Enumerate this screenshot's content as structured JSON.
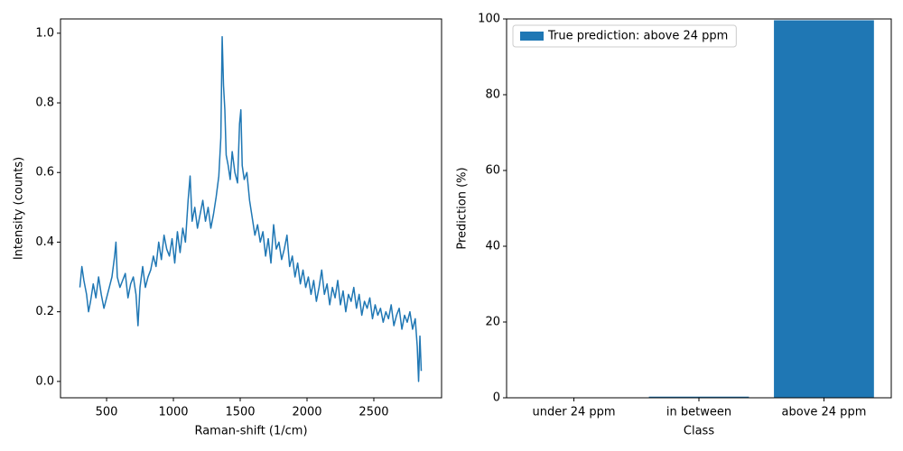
{
  "chart_data": [
    {
      "type": "line",
      "xlabel": "Raman-shift (1/cm)",
      "ylabel": "Intensity (counts)",
      "color": "#1f77b4",
      "x": [
        300,
        315,
        330,
        350,
        365,
        380,
        400,
        420,
        440,
        460,
        480,
        500,
        520,
        540,
        560,
        570,
        580,
        600,
        620,
        640,
        660,
        680,
        700,
        720,
        735,
        750,
        770,
        790,
        810,
        830,
        850,
        870,
        890,
        910,
        930,
        950,
        970,
        990,
        1010,
        1030,
        1050,
        1070,
        1090,
        1110,
        1125,
        1140,
        1160,
        1180,
        1200,
        1220,
        1240,
        1260,
        1280,
        1300,
        1320,
        1340,
        1355,
        1365,
        1375,
        1385,
        1395,
        1410,
        1425,
        1440,
        1460,
        1480,
        1495,
        1505,
        1515,
        1530,
        1550,
        1570,
        1590,
        1610,
        1630,
        1650,
        1670,
        1690,
        1710,
        1730,
        1750,
        1770,
        1790,
        1810,
        1830,
        1850,
        1870,
        1890,
        1910,
        1930,
        1950,
        1970,
        1990,
        2010,
        2030,
        2050,
        2070,
        2090,
        2110,
        2130,
        2150,
        2170,
        2190,
        2210,
        2230,
        2250,
        2270,
        2290,
        2310,
        2330,
        2350,
        2370,
        2390,
        2410,
        2430,
        2450,
        2470,
        2490,
        2510,
        2530,
        2550,
        2570,
        2590,
        2610,
        2630,
        2650,
        2670,
        2690,
        2710,
        2730,
        2750,
        2770,
        2790,
        2810,
        2825,
        2835,
        2845,
        2855
      ],
      "values": [
        0.27,
        0.33,
        0.29,
        0.25,
        0.2,
        0.23,
        0.28,
        0.24,
        0.3,
        0.25,
        0.21,
        0.24,
        0.27,
        0.3,
        0.36,
        0.4,
        0.3,
        0.27,
        0.29,
        0.31,
        0.24,
        0.28,
        0.3,
        0.25,
        0.16,
        0.27,
        0.33,
        0.27,
        0.3,
        0.32,
        0.36,
        0.33,
        0.4,
        0.35,
        0.42,
        0.38,
        0.36,
        0.41,
        0.34,
        0.43,
        0.37,
        0.44,
        0.4,
        0.52,
        0.59,
        0.46,
        0.5,
        0.44,
        0.48,
        0.52,
        0.46,
        0.5,
        0.44,
        0.48,
        0.53,
        0.59,
        0.7,
        0.99,
        0.85,
        0.78,
        0.65,
        0.62,
        0.58,
        0.66,
        0.6,
        0.57,
        0.74,
        0.78,
        0.62,
        0.58,
        0.6,
        0.52,
        0.47,
        0.42,
        0.45,
        0.4,
        0.43,
        0.36,
        0.41,
        0.34,
        0.45,
        0.38,
        0.4,
        0.35,
        0.38,
        0.42,
        0.33,
        0.36,
        0.3,
        0.34,
        0.28,
        0.32,
        0.27,
        0.3,
        0.25,
        0.29,
        0.23,
        0.27,
        0.32,
        0.25,
        0.28,
        0.22,
        0.27,
        0.24,
        0.29,
        0.22,
        0.26,
        0.2,
        0.25,
        0.23,
        0.27,
        0.21,
        0.25,
        0.19,
        0.23,
        0.21,
        0.24,
        0.18,
        0.22,
        0.19,
        0.21,
        0.17,
        0.2,
        0.18,
        0.22,
        0.16,
        0.19,
        0.21,
        0.15,
        0.19,
        0.17,
        0.2,
        0.15,
        0.18,
        0.1,
        0.0,
        0.13,
        0.03
      ],
      "xlim": [
        155,
        3007
      ],
      "ylim": [
        -0.047,
        1.041
      ],
      "xticks": [
        500,
        1000,
        1500,
        2000,
        2500
      ],
      "yticks": [
        {
          "value": 0,
          "label": "0.0"
        },
        {
          "value": 0.2,
          "label": "0.2"
        },
        {
          "value": 0.4,
          "label": "0.4"
        },
        {
          "value": 0.6,
          "label": "0.6"
        },
        {
          "value": 0.8,
          "label": "0.8"
        },
        {
          "value": 1,
          "label": "1.0"
        }
      ]
    },
    {
      "type": "bar",
      "xlabel": "Class",
      "ylabel": "Prediction (%)",
      "categories": [
        "under 24 ppm",
        "in between",
        "above 24 ppm"
      ],
      "series": [
        {
          "name": "True prediction: above 24 ppm",
          "color": "#1f77b4",
          "values": [
            0.05,
            0.3,
            99.65
          ]
        }
      ],
      "ylim": [
        0,
        100
      ],
      "yticks": [
        0,
        20,
        40,
        60,
        80,
        100
      ],
      "legend": "upper left"
    }
  ]
}
